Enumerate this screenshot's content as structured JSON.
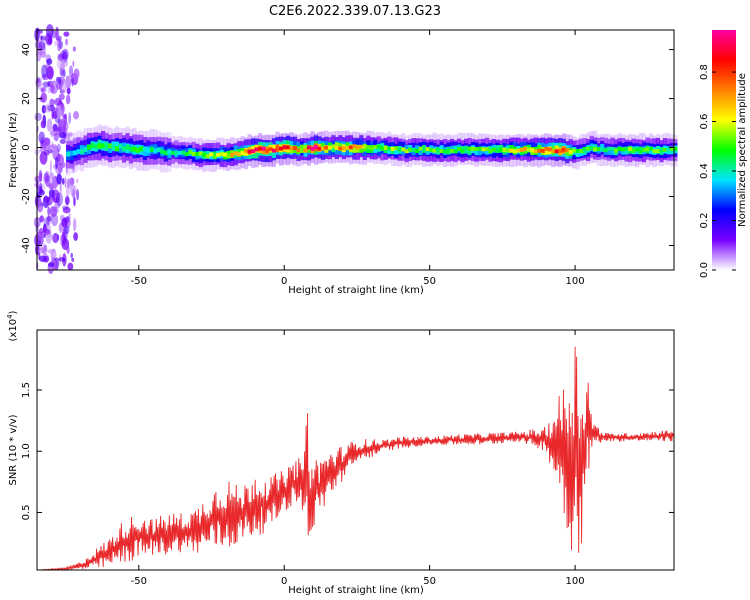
{
  "title": "C2E6.2022.339.07.13.G23",
  "chart_data": [
    {
      "type": "heatmap",
      "xlabel": "Height of straight line (km)",
      "ylabel": "Frequency (Hz)",
      "xlim": [
        -85,
        134
      ],
      "ylim": [
        -50,
        48
      ],
      "x_ticks": [
        -50,
        0,
        50,
        100
      ],
      "y_ticks": [
        40,
        20,
        0,
        -20,
        -40
      ],
      "colorbar": {
        "label": "Normalized spectral amplitude",
        "range": [
          0.0,
          0.97
        ],
        "ticks": [
          "0.0",
          "0.2",
          "0.4",
          "0.6",
          "0.8"
        ],
        "tick_values": [
          0.0,
          0.2,
          0.4,
          0.6,
          0.8
        ],
        "colors": [
          "#ffffff",
          "#7a00ff",
          "#0000ff",
          "#00e5ff",
          "#00ff00",
          "#ffff00",
          "#ff8000",
          "#ff0000",
          "#ff00a0"
        ]
      },
      "ridge_frequency_hz": {
        "x": [
          -75,
          -70,
          -65,
          -60,
          -55,
          -50,
          -45,
          -40,
          -35,
          -30,
          -25,
          -20,
          -15,
          -10,
          -5,
          0,
          5,
          10,
          15,
          20,
          30,
          40,
          50,
          60,
          70,
          80,
          90,
          95,
          100,
          105,
          110,
          120,
          134
        ],
        "y": [
          -3,
          -1,
          1,
          0,
          0,
          -1,
          -1,
          -2,
          -2,
          -3,
          -3,
          -3,
          -2,
          -1,
          -1,
          0,
          -1,
          0,
          0,
          0,
          0,
          -1,
          -1,
          -1,
          -1,
          -1,
          -1,
          -1,
          -2,
          0,
          -1,
          -1,
          -1
        ]
      },
      "ridge_amplitude": {
        "x": [
          -75,
          -70,
          -65,
          -60,
          -55,
          -50,
          -45,
          -40,
          -35,
          -30,
          -25,
          -20,
          -15,
          -10,
          -5,
          0,
          5,
          10,
          15,
          20,
          30,
          40,
          50,
          60,
          70,
          80,
          90,
          95,
          100,
          105,
          110,
          120,
          134
        ],
        "values": [
          0.35,
          0.4,
          0.5,
          0.45,
          0.45,
          0.45,
          0.4,
          0.4,
          0.45,
          0.5,
          0.55,
          0.6,
          0.7,
          0.9,
          0.85,
          0.95,
          0.6,
          0.95,
          0.6,
          0.75,
          0.55,
          0.5,
          0.5,
          0.5,
          0.5,
          0.6,
          0.7,
          0.9,
          0.45,
          0.5,
          0.45,
          0.55,
          0.45
        ]
      },
      "noise_region_x": [
        -85,
        -70
      ]
    },
    {
      "type": "line",
      "xlabel": "Height of straight line (km)",
      "ylabel": "SNR (10 * v/v)",
      "y_multiplier": "(x10",
      "y_multiplier_exp": "4",
      "y_multiplier_close": ")",
      "xlim": [
        -85,
        134
      ],
      "ylim": [
        0.03,
        1.99
      ],
      "x_ticks": [
        -50,
        0,
        50,
        100
      ],
      "y_ticks": [
        0.5,
        1.0,
        1.5
      ],
      "y_tick_labels": [
        "0.5",
        "1.0",
        "1.5"
      ],
      "line_color": "#e8282a",
      "series": [
        {
          "envelope_x": [
            -85,
            -75,
            -70,
            -65,
            -60,
            -55,
            -50,
            -45,
            -40,
            -35,
            -30,
            -25,
            -20,
            -15,
            -10,
            -5,
            0,
            5,
            7,
            8,
            9,
            10,
            15,
            20,
            25,
            30,
            35,
            40,
            50,
            60,
            70,
            80,
            90,
            95,
            98,
            100,
            102,
            104,
            106,
            110,
            120,
            134
          ],
          "low": [
            0.03,
            0.03,
            0.03,
            0.03,
            0.05,
            0.08,
            0.12,
            0.15,
            0.15,
            0.18,
            0.15,
            0.2,
            0.18,
            0.25,
            0.3,
            0.35,
            0.5,
            0.6,
            0.4,
            0.1,
            0.3,
            0.35,
            0.6,
            0.75,
            0.9,
            0.95,
            1.0,
            1.02,
            1.05,
            1.05,
            1.05,
            1.08,
            1.0,
            0.6,
            0.2,
            0.15,
            0.15,
            0.6,
            1.05,
            1.08,
            1.08,
            1.08
          ],
          "high": [
            0.03,
            0.05,
            0.1,
            0.2,
            0.3,
            0.45,
            0.5,
            0.45,
            0.5,
            0.5,
            0.55,
            0.7,
            0.8,
            0.7,
            0.85,
            0.8,
            0.85,
            0.95,
            1.0,
            1.5,
            1.0,
            0.95,
            1.0,
            1.05,
            1.1,
            1.1,
            1.1,
            1.12,
            1.12,
            1.14,
            1.15,
            1.16,
            1.2,
            1.5,
            1.7,
            1.99,
            1.6,
            1.8,
            1.25,
            1.15,
            1.15,
            1.18
          ]
        }
      ]
    }
  ]
}
